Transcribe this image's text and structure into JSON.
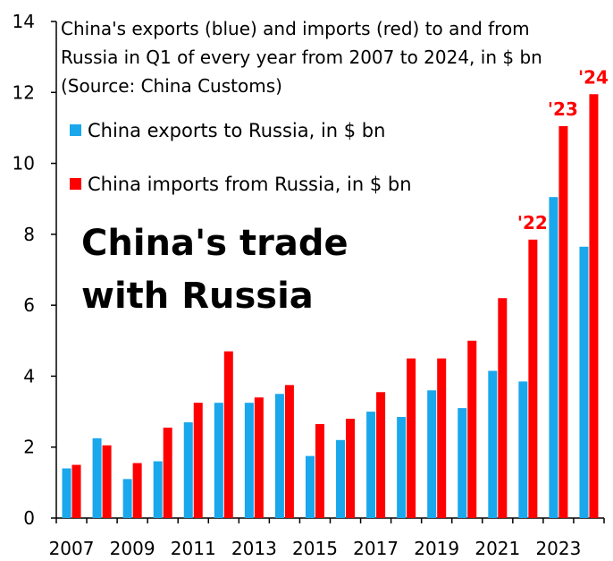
{
  "chart_data": {
    "type": "bar",
    "title_lines": [
      "China's exports (blue) and imports (red) to and from",
      "Russia in Q1 of every year from 2007 to 2024, in $ bn",
      "(Source: China Customs)"
    ],
    "headline_lines": [
      "China's trade",
      "with Russia"
    ],
    "categories": [
      "2007",
      "2008",
      "2009",
      "2010",
      "2011",
      "2012",
      "2013",
      "2014",
      "2015",
      "2016",
      "2017",
      "2018",
      "2019",
      "2020",
      "2021",
      "2022",
      "2023",
      "2024"
    ],
    "x_tick_labels": [
      "2007",
      "2009",
      "2011",
      "2013",
      "2015",
      "2017",
      "2019",
      "2021",
      "2023"
    ],
    "ylim": [
      0,
      14
    ],
    "y_ticks": [
      0,
      2,
      4,
      6,
      8,
      10,
      12,
      14
    ],
    "grid": false,
    "legend_position": "top-left",
    "series": [
      {
        "name": "China exports to Russia, in $ bn",
        "color": "#1aa7ec",
        "values": [
          1.4,
          2.25,
          1.1,
          1.6,
          2.7,
          3.25,
          3.25,
          3.5,
          1.75,
          2.2,
          3.0,
          2.85,
          3.6,
          3.1,
          4.15,
          3.85,
          9.05,
          7.65
        ]
      },
      {
        "name": "China imports from Russia, in $ bn",
        "color": "#ff0000",
        "values": [
          1.5,
          2.05,
          1.55,
          2.55,
          3.25,
          4.7,
          3.4,
          3.75,
          2.65,
          2.8,
          3.55,
          4.5,
          4.5,
          5.0,
          6.2,
          7.85,
          11.05,
          11.95
        ]
      }
    ],
    "annotations": [
      {
        "text": "'22",
        "category": "2022"
      },
      {
        "text": "'23",
        "category": "2023"
      },
      {
        "text": "'24",
        "category": "2024"
      }
    ]
  }
}
